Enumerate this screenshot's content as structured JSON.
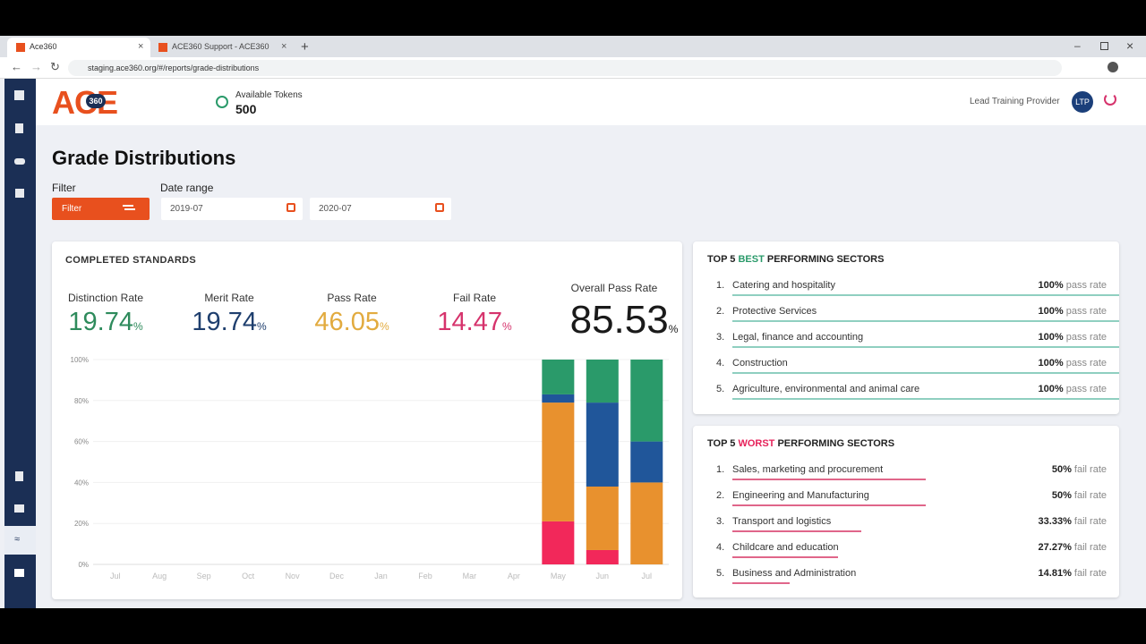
{
  "browser": {
    "tabs": [
      "Ace360",
      "ACE360 Support - ACE360"
    ],
    "url": "staging.ace360.org/#/reports/grade-distributions"
  },
  "header": {
    "logo": "ACE",
    "logo_badge": "360",
    "tokens_label": "Available Tokens",
    "tokens": "500",
    "role": "Lead Training Provider",
    "avatar": "LTP"
  },
  "page": {
    "title": "Grade Distributions",
    "filter_label": "Filter",
    "filter_button": "Filter",
    "date_range_label": "Date range",
    "date_from": "2019-07",
    "date_to": "2020-07"
  },
  "stats": {
    "title": "COMPLETED STANDARDS",
    "unit": "%",
    "items": [
      {
        "label": "Distinction Rate",
        "value": 19.74,
        "color": "#2e8b5c"
      },
      {
        "label": "Merit Rate",
        "value": 19.74,
        "color": "#1f3f6e"
      },
      {
        "label": "Pass Rate",
        "value": 46.05,
        "color": "#e2ab3f"
      },
      {
        "label": "Fail Rate",
        "value": 14.47,
        "color": "#d6336c"
      },
      {
        "label": "Overall Pass Rate",
        "value": 85.53,
        "color": "#1a1a1a"
      }
    ]
  },
  "chart_data": {
    "type": "bar",
    "stacked": true,
    "categories": [
      "Jul",
      "Aug",
      "Sep",
      "Oct",
      "Nov",
      "Dec",
      "Jan",
      "Feb",
      "Mar",
      "Apr",
      "May",
      "Jun",
      "Jul"
    ],
    "series": [
      {
        "color": "#f2285a",
        "values": [
          0,
          0,
          0,
          0,
          0,
          0,
          0,
          0,
          0,
          0,
          21,
          7,
          0
        ]
      },
      {
        "color": "#e8912e",
        "values": [
          0,
          0,
          0,
          0,
          0,
          0,
          0,
          0,
          0,
          0,
          58,
          31,
          40
        ]
      },
      {
        "color": "#20569a",
        "values": [
          0,
          0,
          0,
          0,
          0,
          0,
          0,
          0,
          0,
          0,
          4,
          41,
          20
        ]
      },
      {
        "color": "#2a9a6a",
        "values": [
          0,
          0,
          0,
          0,
          0,
          0,
          0,
          0,
          0,
          0,
          17,
          21,
          40
        ]
      }
    ],
    "ylim": [
      0,
      100
    ],
    "yticks": [
      {
        "value": 0,
        "label": "0%"
      },
      {
        "value": 20,
        "label": "20%"
      },
      {
        "value": 40,
        "label": "40%"
      },
      {
        "value": 60,
        "label": "60%"
      },
      {
        "value": 80,
        "label": "80%"
      },
      {
        "value": 100,
        "label": "100%"
      }
    ],
    "grid": true
  },
  "best": {
    "title_start": "TOP 5",
    "title_highlight": "BEST",
    "title_end": "PERFORMING SECTORS",
    "color": "#2a9a6a",
    "line_color": "#8fcfc0",
    "items": [
      {
        "rank": "1.",
        "name": "Catering and hospitality",
        "rate": 100,
        "rate_label": "100%",
        "suffix": "pass rate"
      },
      {
        "rank": "2.",
        "name": "Protective Services",
        "rate": 100,
        "rate_label": "100%",
        "suffix": "pass rate"
      },
      {
        "rank": "3.",
        "name": "Legal, finance and accounting",
        "rate": 100,
        "rate_label": "100%",
        "suffix": "pass rate"
      },
      {
        "rank": "4.",
        "name": "Construction",
        "rate": 100,
        "rate_label": "100%",
        "suffix": "pass rate"
      },
      {
        "rank": "5.",
        "name": "Agriculture, environmental and animal care",
        "rate": 100,
        "rate_label": "100%",
        "suffix": "pass rate"
      }
    ]
  },
  "worst": {
    "title_start": "TOP 5",
    "title_highlight": "WORST",
    "title_end": "PERFORMING SECTORS",
    "color": "#e6225a",
    "line_color": "#e0668a",
    "items": [
      {
        "rank": "1.",
        "name": "Sales, marketing and procurement",
        "rate": 50,
        "rate_label": "50%",
        "suffix": "fail rate"
      },
      {
        "rank": "2.",
        "name": "Engineering and Manufacturing",
        "rate": 50,
        "rate_label": "50%",
        "suffix": "fail rate"
      },
      {
        "rank": "3.",
        "name": "Transport and logistics",
        "rate": 33.33,
        "rate_label": "33.33%",
        "suffix": "fail rate"
      },
      {
        "rank": "4.",
        "name": "Childcare and education",
        "rate": 27.27,
        "rate_label": "27.27%",
        "suffix": "fail rate"
      },
      {
        "rank": "5.",
        "name": "Business and Administration",
        "rate": 14.81,
        "rate_label": "14.81%",
        "suffix": "fail rate"
      }
    ]
  }
}
